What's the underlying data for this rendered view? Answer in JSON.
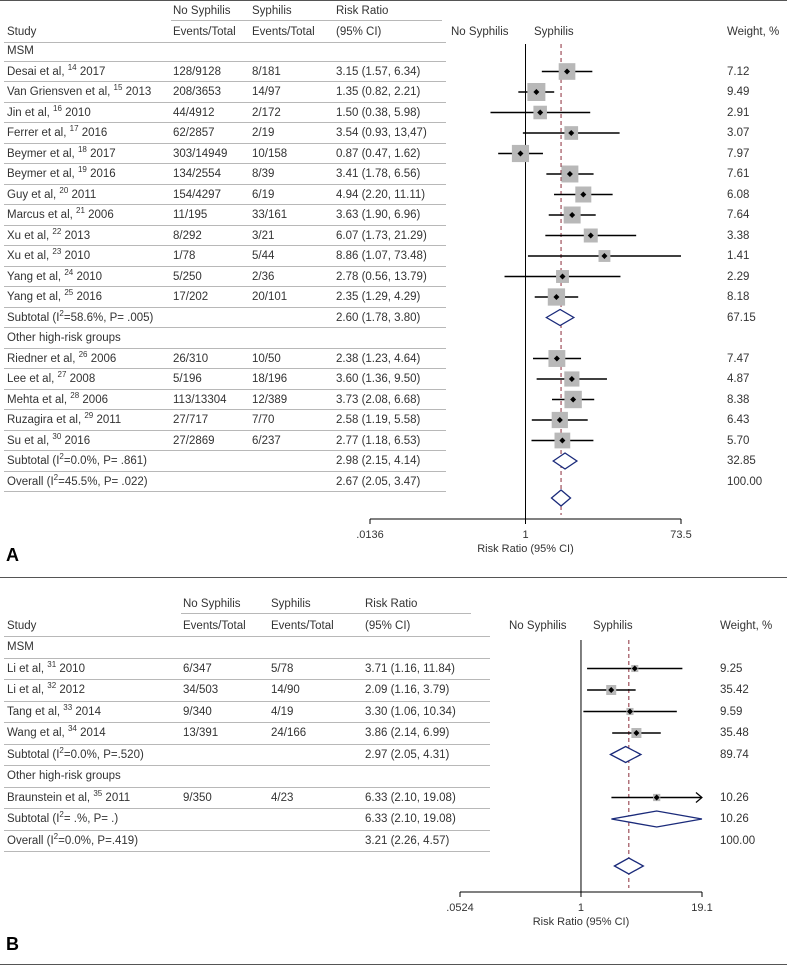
{
  "panelA": {
    "label": "A",
    "headers": {
      "study": "Study",
      "nosyph_top": "No Syphilis",
      "nosyph_bottom": "Events/Total",
      "syph_top": "Syphilis",
      "syph_bottom": "Events/Total",
      "rr_top": "Risk Ratio",
      "rr_bottom": "(95% CI)",
      "plot_left": "No Syphilis",
      "plot_right": "Syphilis",
      "weight": "Weight, %"
    },
    "rows": [
      {
        "type": "group",
        "study": "MSM"
      },
      {
        "type": "study",
        "study": "Desai et al,",
        "ref": "14",
        "year": "2017",
        "nosyph": "128/9128",
        "syph": "8/181",
        "rr": "3.15 (1.57, 6.34)",
        "weight": "7.12"
      },
      {
        "type": "study",
        "study": "Van Griensven et al,",
        "ref": "15",
        "year": "2013",
        "nosyph": "208/3653",
        "syph": "14/97",
        "rr": "1.35 (0.82, 2.21)",
        "weight": "9.49"
      },
      {
        "type": "study",
        "study": "Jin et al,",
        "ref": "16",
        "year": "2010",
        "nosyph": "44/4912",
        "syph": "2/172",
        "rr": "1.50 (0.38, 5.98)",
        "weight": "2.91"
      },
      {
        "type": "study",
        "study": "Ferrer et al,",
        "ref": "17",
        "year": "2016",
        "nosyph": "62/2857",
        "syph": "2/19",
        "rr": "3.54 (0.93, 13,47)",
        "weight": "3.07"
      },
      {
        "type": "study",
        "study": "Beymer et al,",
        "ref": "18",
        "year": "2017",
        "nosyph": "303/14949",
        "syph": "10/158",
        "rr": "0.87 (0.47, 1.62)",
        "weight": "7.97"
      },
      {
        "type": "study",
        "study": "Beymer et al,",
        "ref": "19",
        "year": "2016",
        "nosyph": "134/2554",
        "syph": "8/39",
        "rr": "3.41 (1.78, 6.56)",
        "weight": "7.61"
      },
      {
        "type": "study",
        "study": "Guy et al,",
        "ref": "20",
        "year": "2011",
        "nosyph": "154/4297",
        "syph": "6/19",
        "rr": "4.94 (2.20, 11.11)",
        "weight": "6.08"
      },
      {
        "type": "study",
        "study": "Marcus et al,",
        "ref": "21",
        "year": "2006",
        "nosyph": "11/195",
        "syph": "33/161",
        "rr": "3.63 (1.90, 6.96)",
        "weight": "7.64"
      },
      {
        "type": "study",
        "study": "Xu et al,",
        "ref": "22",
        "year": "2013",
        "nosyph": "8/292",
        "syph": "3/21",
        "rr": "6.07 (1.73, 21.29)",
        "weight": "3.38"
      },
      {
        "type": "study",
        "study": "Xu et al,",
        "ref": "23",
        "year": "2010",
        "nosyph": "1/78",
        "syph": "5/44",
        "rr": "8.86 (1.07, 73.48)",
        "weight": "1.41"
      },
      {
        "type": "study",
        "study": "Yang et al,",
        "ref": "24",
        "year": "2010",
        "nosyph": "5/250",
        "syph": "2/36",
        "rr": "2.78 (0.56, 13.79)",
        "weight": "2.29"
      },
      {
        "type": "study",
        "study": "Yang et al,",
        "ref": "25",
        "year": "2016",
        "nosyph": "17/202",
        "syph": "20/101",
        "rr": "2.35 (1.29, 4.29)",
        "weight": "8.18"
      },
      {
        "type": "subtotal",
        "study": "Subtotal (I",
        "sup": "2",
        "tail": "=58.6%, P= .005)",
        "rr": "2.60 (1.78, 3.80)",
        "weight": "67.15"
      },
      {
        "type": "group",
        "study": "Other high-risk groups"
      },
      {
        "type": "study",
        "study": "Riedner et al,",
        "ref": "26",
        "year": "2006",
        "nosyph": "26/310",
        "syph": "10/50",
        "rr": "2.38 (1.23, 4.64)",
        "weight": "7.47"
      },
      {
        "type": "study",
        "study": "Lee et al,",
        "ref": "27",
        "year": "2008",
        "nosyph": "5/196",
        "syph": "18/196",
        "rr": "3.60 (1.36, 9.50)",
        "weight": "4.87"
      },
      {
        "type": "study",
        "study": "Mehta et al,",
        "ref": "28",
        "year": "2006",
        "nosyph": "113/13304",
        "syph": "12/389",
        "rr": "3.73 (2.08, 6.68)",
        "weight": "8.38"
      },
      {
        "type": "study",
        "study": "Ruzagira et al,",
        "ref": "29",
        "year": "2011",
        "nosyph": "27/717",
        "syph": "7/70",
        "rr": "2.58 (1.19, 5.58)",
        "weight": "6.43"
      },
      {
        "type": "study",
        "study": "Su et al,",
        "ref": "30",
        "year": "2016",
        "nosyph": "27/2869",
        "syph": "6/237",
        "rr": "2.77 (1.18, 6.53)",
        "weight": "5.70"
      },
      {
        "type": "subtotal",
        "study": "Subtotal (I",
        "sup": "2",
        "tail": "=0.0%, P= .861)",
        "rr": "2.98 (2.15, 4.14)",
        "weight": "32.85"
      },
      {
        "type": "subtotal",
        "study": "Overall (I",
        "sup": "2",
        "tail": "=45.5%, P= .022)",
        "rr": "2.67 (2.05, 3.47)",
        "weight": "100.00"
      }
    ],
    "axis": {
      "ticks": [
        ".0136",
        "1",
        "73.5"
      ],
      "label": "Risk Ratio (95% CI)"
    }
  },
  "panelB": {
    "label": "B",
    "headers": {
      "study": "Study",
      "nosyph_top": "No Syphilis",
      "nosyph_bottom": "Events/Total",
      "syph_top": "Syphilis",
      "syph_bottom": "Events/Total",
      "rr_top": "Risk Ratio",
      "rr_bottom": "(95% CI)",
      "plot_left": "No Syphilis",
      "plot_right": "Syphilis",
      "weight": "Weight, %"
    },
    "rows": [
      {
        "type": "group",
        "study": "MSM"
      },
      {
        "type": "study",
        "study": "Li et al,",
        "ref": "31",
        "year": "2010",
        "nosyph": "6/347",
        "syph": "5/78",
        "rr": "3.71 (1.16, 11.84)",
        "weight": "9.25"
      },
      {
        "type": "study",
        "study": "Li et al,",
        "ref": "32",
        "year": "2012",
        "nosyph": "34/503",
        "syph": "14/90",
        "rr": "2.09 (1.16, 3.79)",
        "weight": "35.42"
      },
      {
        "type": "study",
        "study": "Tang et al,",
        "ref": "33",
        "year": "2014",
        "nosyph": "9/340",
        "syph": "4/19",
        "rr": "3.30 (1.06, 10.34)",
        "weight": "9.59"
      },
      {
        "type": "study",
        "study": "Wang et al,",
        "ref": "34",
        "year": "2014",
        "nosyph": "13/391",
        "syph": "24/166",
        "rr": "3.86 (2.14, 6.99)",
        "weight": "35.48"
      },
      {
        "type": "subtotal",
        "study": "Subtotal (I",
        "sup": "2",
        "tail": "=0.0%, P=.520)",
        "rr": "2.97 (2.05, 4.31)",
        "weight": "89.74"
      },
      {
        "type": "group",
        "study": "Other high-risk groups"
      },
      {
        "type": "study",
        "study": "Braunstein et al,",
        "ref": "35",
        "year": "2011",
        "nosyph": "9/350",
        "syph": "4/23",
        "rr": "6.33 (2.10, 19.08)",
        "weight": "10.26"
      },
      {
        "type": "subtotal",
        "study": "Subtotal (I",
        "sup": "2",
        "tail": "= .%, P= .)",
        "rr": "6.33 (2.10, 19.08)",
        "weight": "10.26"
      },
      {
        "type": "subtotal",
        "study": "Overall (I",
        "sup": "2",
        "tail": "=0.0%, P=.419)",
        "rr": "3.21 (2.26, 4.57)",
        "weight": "100.00"
      }
    ],
    "axis": {
      "ticks": [
        ".0524",
        "1",
        "19.1"
      ],
      "label": "Risk Ratio (95% CI)"
    }
  },
  "chart_data": [
    {
      "type": "forest",
      "title": "A",
      "xlabel": "Risk Ratio (95% CI)",
      "xscale": "log",
      "xlim": [
        0.0136,
        73.5
      ],
      "xticks": [
        0.0136,
        1,
        73.5
      ],
      "reference_line": 1,
      "overall_dashed_line": 2.67,
      "studies": [
        {
          "label": "Desai et al, 2017",
          "rr": 3.15,
          "lo": 1.57,
          "hi": 6.34,
          "weight": 7.12
        },
        {
          "label": "Van Griensven et al, 2013",
          "rr": 1.35,
          "lo": 0.82,
          "hi": 2.21,
          "weight": 9.49
        },
        {
          "label": "Jin et al, 2010",
          "rr": 1.5,
          "lo": 0.38,
          "hi": 5.98,
          "weight": 2.91
        },
        {
          "label": "Ferrer et al, 2016",
          "rr": 3.54,
          "lo": 0.93,
          "hi": 13.47,
          "weight": 3.07
        },
        {
          "label": "Beymer et al, 2017",
          "rr": 0.87,
          "lo": 0.47,
          "hi": 1.62,
          "weight": 7.97
        },
        {
          "label": "Beymer et al, 2016",
          "rr": 3.41,
          "lo": 1.78,
          "hi": 6.56,
          "weight": 7.61
        },
        {
          "label": "Guy et al, 2011",
          "rr": 4.94,
          "lo": 2.2,
          "hi": 11.11,
          "weight": 6.08
        },
        {
          "label": "Marcus et al, 2006",
          "rr": 3.63,
          "lo": 1.9,
          "hi": 6.96,
          "weight": 7.64
        },
        {
          "label": "Xu et al, 2013",
          "rr": 6.07,
          "lo": 1.73,
          "hi": 21.29,
          "weight": 3.38
        },
        {
          "label": "Xu et al, 2010",
          "rr": 8.86,
          "lo": 1.07,
          "hi": 73.48,
          "weight": 1.41
        },
        {
          "label": "Yang et al, 2010",
          "rr": 2.78,
          "lo": 0.56,
          "hi": 13.79,
          "weight": 2.29
        },
        {
          "label": "Yang et al, 2016",
          "rr": 2.35,
          "lo": 1.29,
          "hi": 4.29,
          "weight": 8.18
        },
        {
          "label": "Subtotal MSM",
          "rr": 2.6,
          "lo": 1.78,
          "hi": 3.8,
          "weight": 67.15,
          "summary": true
        },
        {
          "label": "Riedner et al, 2006",
          "rr": 2.38,
          "lo": 1.23,
          "hi": 4.64,
          "weight": 7.47
        },
        {
          "label": "Lee et al, 2008",
          "rr": 3.6,
          "lo": 1.36,
          "hi": 9.5,
          "weight": 4.87
        },
        {
          "label": "Mehta et al, 2006",
          "rr": 3.73,
          "lo": 2.08,
          "hi": 6.68,
          "weight": 8.38
        },
        {
          "label": "Ruzagira et al, 2011",
          "rr": 2.58,
          "lo": 1.19,
          "hi": 5.58,
          "weight": 6.43
        },
        {
          "label": "Su et al, 2016",
          "rr": 2.77,
          "lo": 1.18,
          "hi": 6.53,
          "weight": 5.7
        },
        {
          "label": "Subtotal Other high-risk groups",
          "rr": 2.98,
          "lo": 2.15,
          "hi": 4.14,
          "weight": 32.85,
          "summary": true
        },
        {
          "label": "Overall",
          "rr": 2.67,
          "lo": 2.05,
          "hi": 3.47,
          "weight": 100.0,
          "summary": true
        }
      ]
    },
    {
      "type": "forest",
      "title": "B",
      "xlabel": "Risk Ratio (95% CI)",
      "xscale": "log",
      "xlim": [
        0.0524,
        19.1
      ],
      "xticks": [
        0.0524,
        1,
        19.1
      ],
      "reference_line": 1,
      "overall_dashed_line": 3.21,
      "studies": [
        {
          "label": "Li et al, 2010",
          "rr": 3.71,
          "lo": 1.16,
          "hi": 11.84,
          "weight": 9.25
        },
        {
          "label": "Li et al, 2012",
          "rr": 2.09,
          "lo": 1.16,
          "hi": 3.79,
          "weight": 35.42
        },
        {
          "label": "Tang et al, 2014",
          "rr": 3.3,
          "lo": 1.06,
          "hi": 10.34,
          "weight": 9.59
        },
        {
          "label": "Wang et al, 2014",
          "rr": 3.86,
          "lo": 2.14,
          "hi": 6.99,
          "weight": 35.48
        },
        {
          "label": "Subtotal MSM",
          "rr": 2.97,
          "lo": 2.05,
          "hi": 4.31,
          "weight": 89.74,
          "summary": true
        },
        {
          "label": "Braunstein et al, 2011",
          "rr": 6.33,
          "lo": 2.1,
          "hi": 19.08,
          "weight": 10.26,
          "arrow": true
        },
        {
          "label": "Subtotal Other high-risk groups",
          "rr": 6.33,
          "lo": 2.1,
          "hi": 19.08,
          "weight": 10.26,
          "summary": true
        },
        {
          "label": "Overall",
          "rr": 3.21,
          "lo": 2.26,
          "hi": 4.57,
          "weight": 100.0,
          "summary": true
        }
      ]
    }
  ]
}
